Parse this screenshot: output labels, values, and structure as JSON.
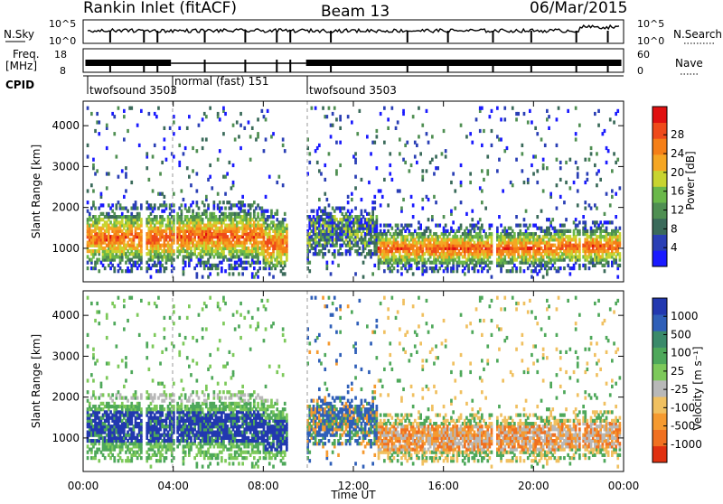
{
  "header": {
    "title": "Rankin Inlet (fitACF)",
    "beam": "Beam 13",
    "date": "06/Mar/2015"
  },
  "params": {
    "nsky_label": "N.Sky",
    "nsky_ticks": [
      "10^5",
      "10^0"
    ],
    "nsearch_label": "N.Search",
    "nsearch_ticks": [
      "10^5",
      "10^0"
    ],
    "freq_label_1": "Freq.",
    "freq_label_2": "[MHz]",
    "freq_ticks": [
      "18",
      "8"
    ],
    "nave_label": "Nave",
    "nave_ticks": [
      "60",
      "0"
    ],
    "cpid_label": "CPID",
    "cpid_segments": [
      {
        "label": "twofsound 3503",
        "start_h": 0.0
      },
      {
        "label": "normal (fast) 151",
        "start_h": 3.95
      },
      {
        "label": "twofsound 3503",
        "start_h": 9.95
      }
    ]
  },
  "chart_data": [
    {
      "type": "heatmap",
      "panel": "power",
      "ylabel": "Slant Range [km]",
      "xlabel": "",
      "x_range_h": [
        0,
        24
      ],
      "ylim": [
        180,
        4600
      ],
      "y_ticks": [
        "1000",
        "2000",
        "3000",
        "4000"
      ],
      "colorbar_label": "Power [dB]",
      "colorbar_ticks": [
        "4",
        "8",
        "12",
        "16",
        "20",
        "24",
        "28"
      ],
      "colorbar_colors": [
        "#1a1aff",
        "#2a3fb5",
        "#3a6a5a",
        "#4f8f52",
        "#6ab84a",
        "#c8d430",
        "#f5a623",
        "#f57f17",
        "#ef4a1a",
        "#e01010"
      ]
    },
    {
      "type": "heatmap",
      "panel": "velocity",
      "ylabel": "Slant Range [km]",
      "xlabel": "Time UT",
      "x_range_h": [
        0,
        24
      ],
      "x_ticks": [
        "00:00",
        "04:00",
        "08:00",
        "12:00",
        "16:00",
        "20:00",
        "00:00"
      ],
      "ylim": [
        180,
        4600
      ],
      "y_ticks": [
        "1000",
        "2000",
        "3000",
        "4000"
      ],
      "colorbar_label": "Velocity [m s⁻¹]",
      "colorbar_ticks": [
        "1000",
        "500",
        "100",
        "25",
        "-25",
        "-100",
        "-500",
        "-1000"
      ],
      "colorbar_colors": [
        "#2238b0",
        "#2f5fb8",
        "#3a8a6a",
        "#4ea85a",
        "#7dc95a",
        "#b8b8b8",
        "#f0c060",
        "#f59a30",
        "#f07020",
        "#e03010"
      ]
    }
  ]
}
